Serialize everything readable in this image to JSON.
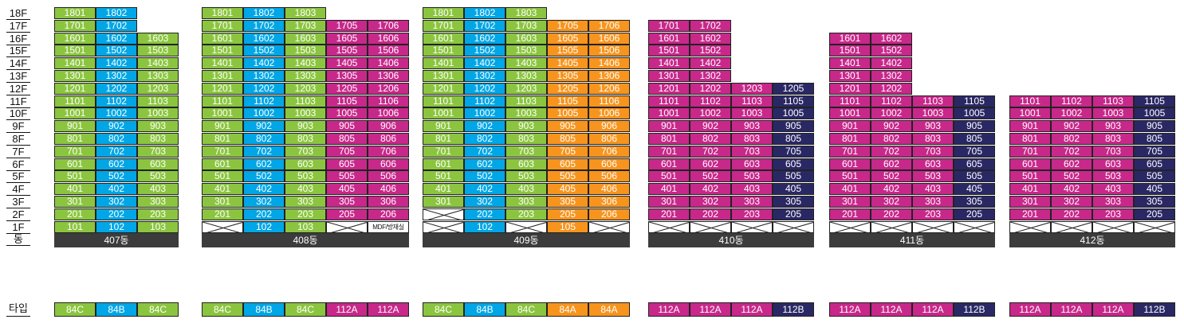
{
  "floor_labels": [
    "18F",
    "17F",
    "16F",
    "15F",
    "14F",
    "13F",
    "12F",
    "11F",
    "10F",
    "9F",
    "8F",
    "7F",
    "6F",
    "5F",
    "4F",
    "3F",
    "2F",
    "1F",
    "동"
  ],
  "type_row_label": "타입",
  "colors": {
    "84C": "#8bc53f",
    "84B": "#00a6e6",
    "112A": "#c7288a",
    "84A": "#f7941d",
    "112B": "#2a2864",
    "bar": "#3c3c3c"
  },
  "buildings": [
    {
      "name": "407동",
      "columns": [
        {
          "type": "84C",
          "suffix": "01",
          "top": 18,
          "lines": [
            1
          ],
          "first": {
            "label": "101"
          }
        },
        {
          "type": "84B",
          "suffix": "02",
          "top": 18,
          "first": {
            "label": "102"
          }
        },
        {
          "type": "84C",
          "suffix": "03",
          "top": 16,
          "first": {
            "label": "103"
          }
        }
      ]
    },
    {
      "name": "408동",
      "columns": [
        {
          "type": "84C",
          "suffix": "01",
          "top": 18,
          "first": {
            "x": true
          }
        },
        {
          "type": "84B",
          "suffix": "02",
          "top": 18,
          "first": {
            "label": "102"
          }
        },
        {
          "type": "84C",
          "suffix": "03",
          "top": 18,
          "first": {
            "label": "103"
          }
        },
        {
          "type": "112A",
          "suffix": "05",
          "top": 17,
          "first": {
            "x": true
          }
        },
        {
          "type": "112A",
          "suffix": "06",
          "top": 17,
          "first": {
            "label": "MDF/방재실",
            "small": true,
            "white": true
          }
        }
      ]
    },
    {
      "name": "409동",
      "columns": [
        {
          "type": "84C",
          "suffix": "01",
          "top": 18,
          "first": {
            "x": true
          },
          "second": {
            "x": true
          }
        },
        {
          "type": "84B",
          "suffix": "02",
          "top": 18,
          "first": {
            "label": "102"
          }
        },
        {
          "type": "84C",
          "suffix": "03",
          "top": 18,
          "first": {
            "x": true
          }
        },
        {
          "type": "84A",
          "suffix": "05",
          "top": 17,
          "first": {
            "label": "105"
          }
        },
        {
          "type": "84A",
          "suffix": "06",
          "top": 17,
          "first": {
            "x": true
          }
        }
      ]
    },
    {
      "name": "410동",
      "columns": [
        {
          "type": "112A",
          "suffix": "01",
          "top": 17,
          "first": {
            "x": true
          }
        },
        {
          "type": "112A",
          "suffix": "02",
          "top": 17,
          "first": {
            "x": true
          }
        },
        {
          "type": "112A",
          "suffix": "03",
          "top": 12,
          "first": {
            "x": true
          }
        },
        {
          "type": "112B",
          "suffix": "05",
          "top": 12,
          "first": {
            "x": true
          }
        }
      ]
    },
    {
      "name": "411동",
      "columns": [
        {
          "type": "112A",
          "suffix": "01",
          "top": 16,
          "first": {
            "x": true
          }
        },
        {
          "type": "112A",
          "suffix": "02",
          "top": 16,
          "first": {
            "x": true
          }
        },
        {
          "type": "112A",
          "suffix": "03",
          "top": 11,
          "first": {
            "x": true
          }
        },
        {
          "type": "112B",
          "suffix": "05",
          "top": 11,
          "first": {
            "x": true
          }
        }
      ]
    },
    {
      "name": "412동",
      "columns": [
        {
          "type": "112A",
          "suffix": "01",
          "top": 11,
          "first": {
            "x": true
          }
        },
        {
          "type": "112A",
          "suffix": "02",
          "top": 11,
          "first": {
            "x": true
          }
        },
        {
          "type": "112A",
          "suffix": "03",
          "top": 11,
          "first": {
            "x": true
          }
        },
        {
          "type": "112B",
          "suffix": "05",
          "top": 11,
          "first": {
            "x": true
          }
        }
      ]
    }
  ]
}
